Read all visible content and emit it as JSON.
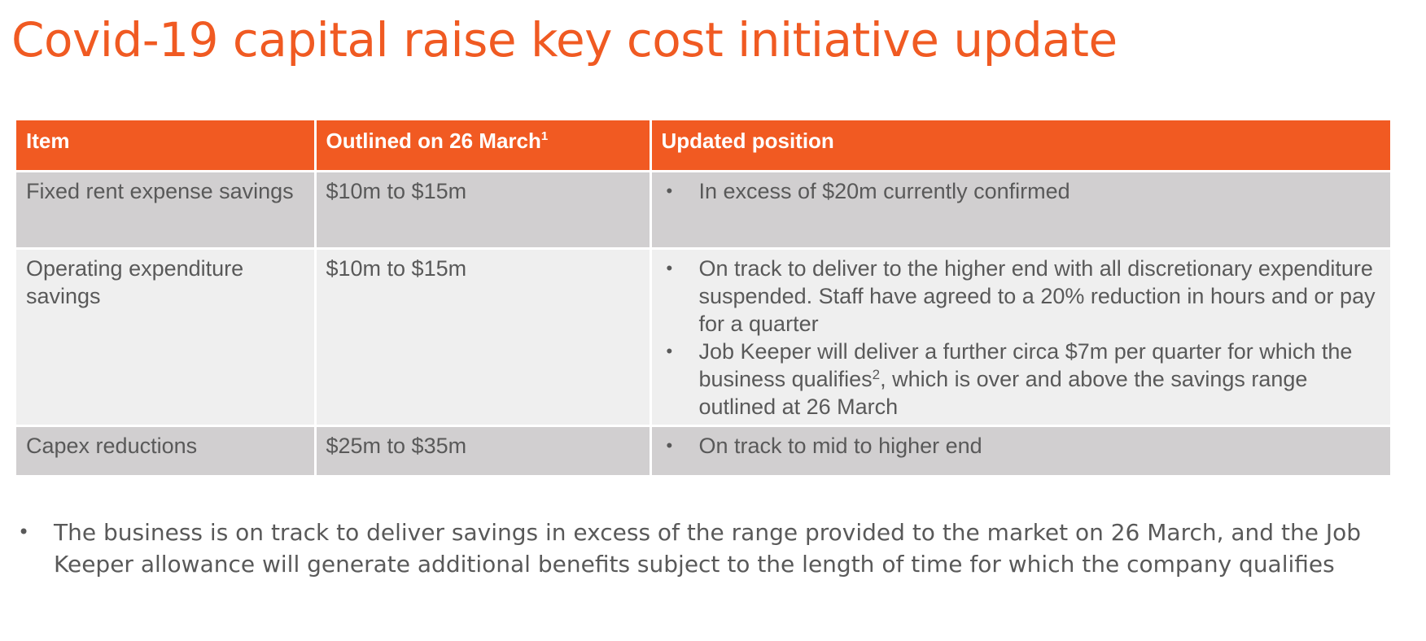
{
  "slide": {
    "title": "Covid-19 capital raise key cost initiative update"
  },
  "table": {
    "headers": {
      "item": "Item",
      "outlined": "Outlined on 26 March",
      "outlined_footnote": "1",
      "updated": "Updated position"
    },
    "rows": [
      {
        "item": "Fixed rent expense savings",
        "outlined": "$10m to $15m",
        "bullets": [
          {
            "text": "In excess of $20m currently confirmed"
          }
        ]
      },
      {
        "item": "Operating expenditure savings",
        "outlined": "$10m to $15m",
        "bullets": [
          {
            "text": "On track to deliver to the higher end with all discretionary expenditure suspended.  Staff have agreed to a 20% reduction in hours and or pay for a quarter"
          },
          {
            "text_before": "Job Keeper will deliver a further circa $7m per quarter for which the business qualifies",
            "footnote": "2",
            "text_after": ", which is over and above the savings range outlined at 26 March"
          }
        ]
      },
      {
        "item": "Capex reductions",
        "outlined": "$25m to $35m",
        "bullets": [
          {
            "text": "On track to mid to higher end"
          }
        ]
      }
    ]
  },
  "summary": {
    "text": "The business is on track to deliver savings in excess of the range provided to the market on 26 March, and the Job Keeper allowance will generate additional benefits subject to the length of time for which the company qualifies"
  },
  "colors": {
    "accent": "#f15a22",
    "row_dark": "#d1cfd0",
    "row_light": "#efefef",
    "text": "#595959"
  }
}
